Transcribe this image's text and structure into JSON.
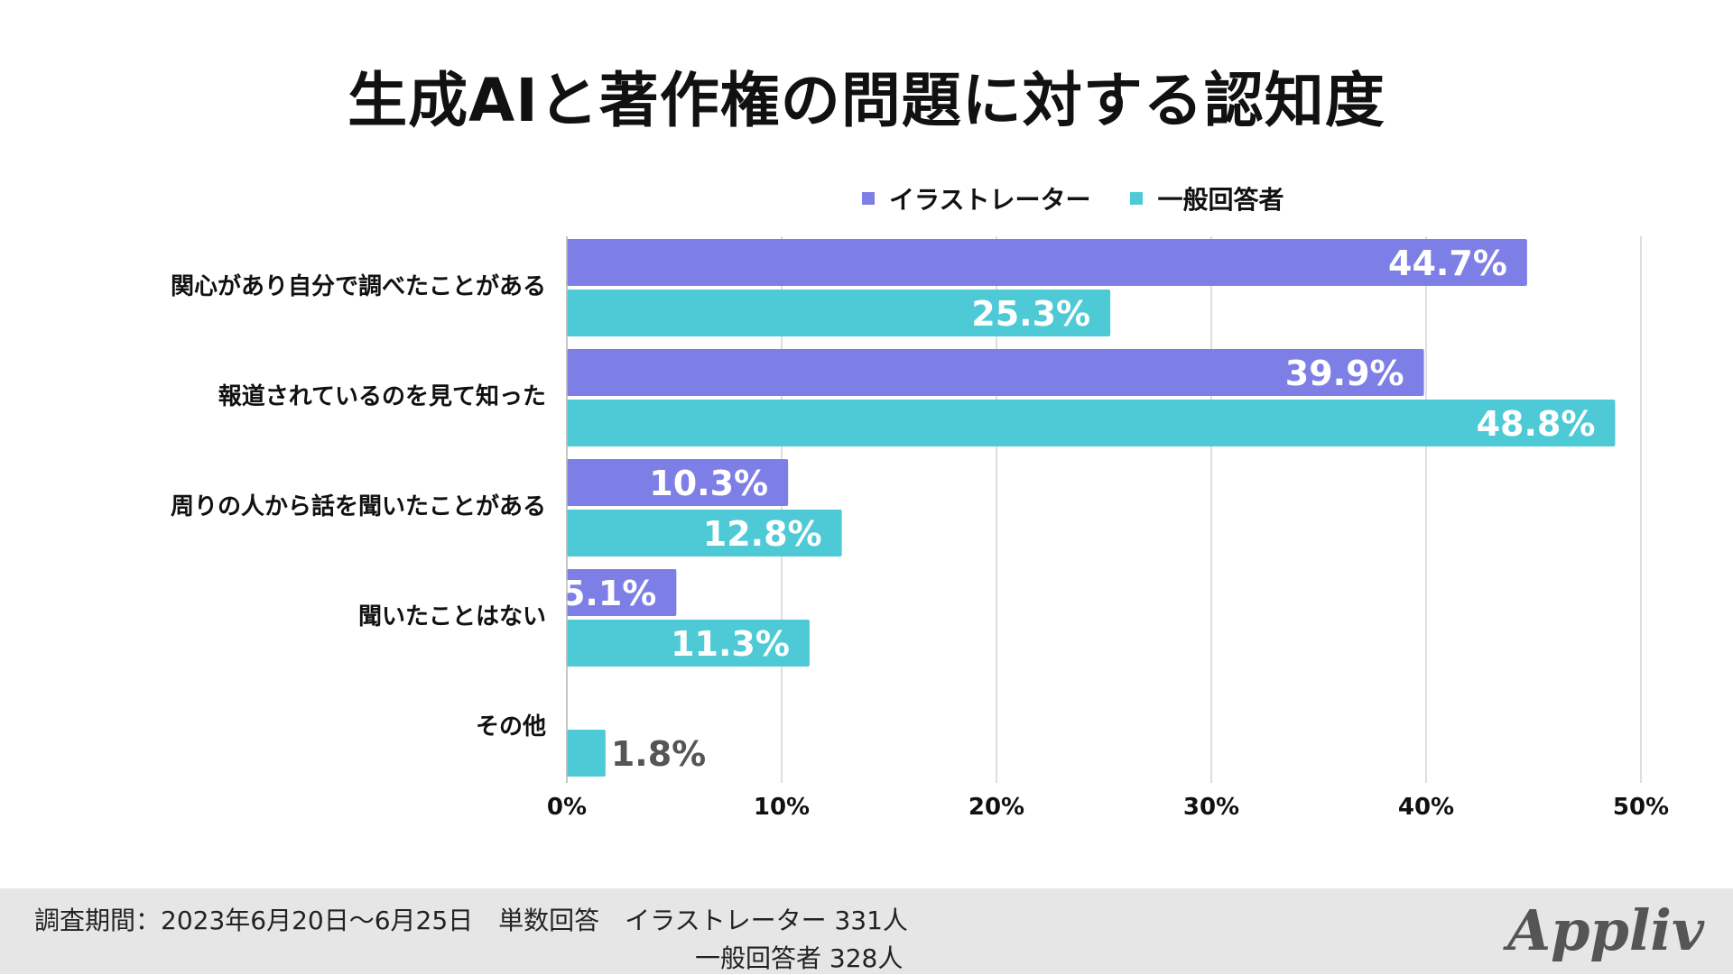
{
  "chart_data": {
    "type": "bar",
    "orientation": "horizontal",
    "title": "生成AIと著作権の問題に対する認知度",
    "categories": [
      "関心があり自分で調べたことがある",
      "報道されているのを見て知った",
      "周りの人から話を聞いたことがある",
      "聞いたことはない",
      "その他"
    ],
    "series": [
      {
        "name": "イラストレーター",
        "color": "#7e7fe6",
        "values": [
          44.7,
          39.9,
          10.3,
          5.1,
          null
        ],
        "labels": [
          "44.7%",
          "39.9%",
          "10.3%",
          "5.1%",
          ""
        ]
      },
      {
        "name": "一般回答者",
        "color": "#4ecad6",
        "values": [
          25.3,
          48.8,
          12.8,
          11.3,
          1.8
        ],
        "labels": [
          "25.3%",
          "48.8%",
          "12.8%",
          "11.3%",
          "1.8%"
        ]
      }
    ],
    "xlim": [
      0,
      50
    ],
    "xticks": [
      0,
      10,
      20,
      30,
      40,
      50
    ],
    "xtick_labels": [
      "0%",
      "10%",
      "20%",
      "30%",
      "40%",
      "50%"
    ],
    "grid": true,
    "legend_position": "top-right"
  },
  "footer": {
    "line1": "調査期間：2023年6月20日〜6月25日　単数回答　イラストレーター 331人",
    "line2": "一般回答者 328人"
  },
  "brand": {
    "logo_text": "Appliv"
  }
}
